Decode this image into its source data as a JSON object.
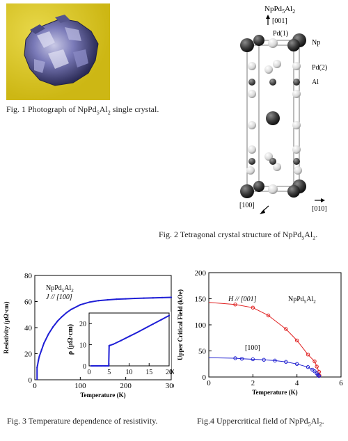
{
  "fig1": {
    "caption_prefix": "Fig. 1 Photograph of NpPd",
    "caption_sub1": "5",
    "caption_mid": "Al",
    "caption_sub2": "2",
    "caption_suffix": " single crystal."
  },
  "fig2": {
    "compound_prefix": "NpPd",
    "compound_sub1": "5",
    "compound_mid": "Al",
    "compound_sub2": "2",
    "axis_001": "[001]",
    "axis_100": "[100]",
    "axis_010": "[010]",
    "label_pd1": "Pd(1)",
    "label_np": "Np",
    "label_pd2": "Pd(2)",
    "label_al": "Al",
    "caption_prefix": "Fig. 2 Tetragonal crystal structure of NpPd",
    "caption_sub1": "5",
    "caption_mid": "Al",
    "caption_sub2": "2",
    "caption_suffix": "."
  },
  "fig3": {
    "caption": "Fig. 3 Temperature dependence of resistivity.",
    "compound_prefix": "NpPd",
    "compound_sub1": "5",
    "compound_mid": "Al",
    "compound_sub2": "2",
    "direction": "J // [100]",
    "inset_ylabel": "ρ (μΩ·cm)",
    "inset_xunit": "K"
  },
  "fig4": {
    "caption_prefix": "Fig.4 Uppercritical field of NpPd",
    "caption_sub1": "5",
    "caption_mid": "Al",
    "caption_sub2": "2",
    "caption_suffix": ".",
    "compound_prefix": "NpPd",
    "compound_sub1": "5",
    "compound_mid": "Al",
    "compound_sub2": "2"
  },
  "chart_data": [
    {
      "type": "line",
      "xlabel": "Temperature (K)",
      "ylabel": "Resistivity (μΩ·cm)",
      "xlim": [
        0,
        300
      ],
      "ylim": [
        0,
        80
      ],
      "xticks": [
        0,
        100,
        200,
        300
      ],
      "yticks": [
        0,
        20,
        40,
        60,
        80
      ],
      "series": [
        {
          "color": "#1f1fd6",
          "x": [
            5,
            6,
            8,
            10,
            15,
            20,
            30,
            40,
            50,
            60,
            70,
            80,
            100,
            120,
            140,
            160,
            180,
            200,
            220,
            240,
            260,
            280,
            300
          ],
          "y": [
            9.5,
            11,
            15,
            18,
            23,
            28,
            35,
            40.5,
            45,
            48.5,
            51.5,
            54,
            57.5,
            59.5,
            60.7,
            61.3,
            61.8,
            62.1,
            62.4,
            62.6,
            62.8,
            63.0,
            63.2
          ]
        }
      ],
      "inset": {
        "type": "line",
        "xlim": [
          0,
          20
        ],
        "ylim": [
          0,
          25
        ],
        "xticks": [
          0,
          5,
          10,
          15,
          20
        ],
        "yticks": [
          0,
          10,
          20
        ],
        "series": [
          {
            "color": "#1f1fd6",
            "x": [
              0.5,
              1,
              2,
              3,
              4,
              4.8,
              4.9,
              5.0,
              5.1,
              5.2,
              6,
              8,
              10,
              12,
              14,
              16,
              18,
              20
            ],
            "y": [
              0,
              0,
              0,
              0,
              0,
              0,
              0,
              9.5,
              9.6,
              9.7,
              10.2,
              12.0,
              13.9,
              15.8,
              17.8,
              19.8,
              21.8,
              23.8
            ]
          }
        ]
      }
    },
    {
      "type": "scatter",
      "xlabel": "Temperature (K)",
      "ylabel": "Upper Critical Field (kOe)",
      "xlim": [
        0,
        6
      ],
      "ylim": [
        0,
        200
      ],
      "xticks": [
        0,
        2,
        4,
        6
      ],
      "yticks": [
        0,
        50,
        100,
        150,
        200
      ],
      "series": [
        {
          "name": "H // [001]",
          "color": "#e02020",
          "points": [
            [
              1.2,
              139
            ],
            [
              2.0,
              133
            ],
            [
              2.7,
              118
            ],
            [
              3.5,
              92
            ],
            [
              4.0,
              70
            ],
            [
              4.5,
              43
            ],
            [
              4.8,
              30
            ],
            [
              4.9,
              20
            ],
            [
              5.0,
              10
            ],
            [
              5.02,
              3
            ]
          ]
        },
        {
          "name": "[100]",
          "color": "#2020d0",
          "points": [
            [
              1.2,
              36
            ],
            [
              1.5,
              35
            ],
            [
              2.0,
              34
            ],
            [
              2.5,
              33
            ],
            [
              3.0,
              31.5
            ],
            [
              3.5,
              29
            ],
            [
              4.0,
              25
            ],
            [
              4.5,
              19
            ],
            [
              4.7,
              14
            ],
            [
              4.8,
              11
            ],
            [
              4.9,
              7
            ],
            [
              4.95,
              4
            ],
            [
              5.0,
              2
            ]
          ]
        }
      ]
    }
  ]
}
